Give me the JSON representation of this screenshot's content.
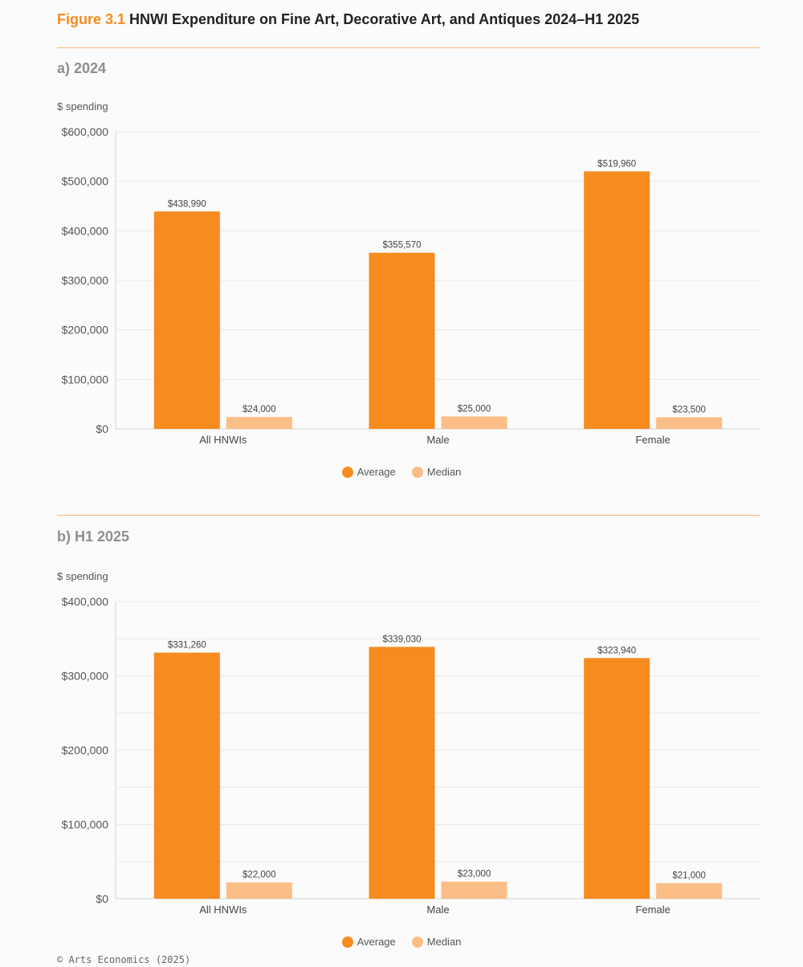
{
  "figure": {
    "number": "Figure 3.1",
    "title": "HNWI Expenditure on Fine Art, Decorative Art, and Antiques 2024–H1 2025"
  },
  "colors": {
    "average": "#f68b1f",
    "median": "#fbbe86",
    "grid": "#e9e9e9",
    "axis": "#d0d0d0"
  },
  "chart_data": [
    {
      "type": "bar",
      "panel_title": "a) 2024",
      "ylabel": "$ spending",
      "categories": [
        "All HNWIs",
        "Male",
        "Female"
      ],
      "series": [
        {
          "name": "Average",
          "values": [
            438990,
            355570,
            519960
          ],
          "labels": [
            "$438,990",
            "$355,570",
            "$519,960"
          ]
        },
        {
          "name": "Median",
          "values": [
            24000,
            25000,
            23500
          ],
          "labels": [
            "$24,000",
            "$25,000",
            "$23,500"
          ]
        }
      ],
      "ylim": [
        0,
        600000
      ],
      "yticks": [
        0,
        100000,
        200000,
        300000,
        400000,
        500000,
        600000
      ],
      "ytick_labels": [
        "$0",
        "$100,000",
        "$200,000",
        "$300,000",
        "$400,000",
        "$500,000",
        "$600,000"
      ],
      "legend": [
        "Average",
        "Median"
      ],
      "legend_position": "bottom-center"
    },
    {
      "type": "bar",
      "panel_title": "b) H1 2025",
      "ylabel": "$ spending",
      "categories": [
        "All HNWIs",
        "Male",
        "Female"
      ],
      "series": [
        {
          "name": "Average",
          "values": [
            331260,
            339030,
            323940
          ],
          "labels": [
            "$331,260",
            "$339,030",
            "$323,940"
          ]
        },
        {
          "name": "Median",
          "values": [
            22000,
            23000,
            21000
          ],
          "labels": [
            "$22,000",
            "$23,000",
            "$21,000"
          ]
        }
      ],
      "ylim": [
        0,
        400000
      ],
      "yticks": [
        0,
        100000,
        200000,
        300000,
        400000
      ],
      "ytick_labels": [
        "$0",
        "$100,000",
        "$200,000",
        "$300,000",
        "$400,000"
      ],
      "legend": [
        "Average",
        "Median"
      ],
      "legend_position": "bottom-center"
    }
  ],
  "footer": {
    "credit": "© Arts Economics (2025)"
  }
}
